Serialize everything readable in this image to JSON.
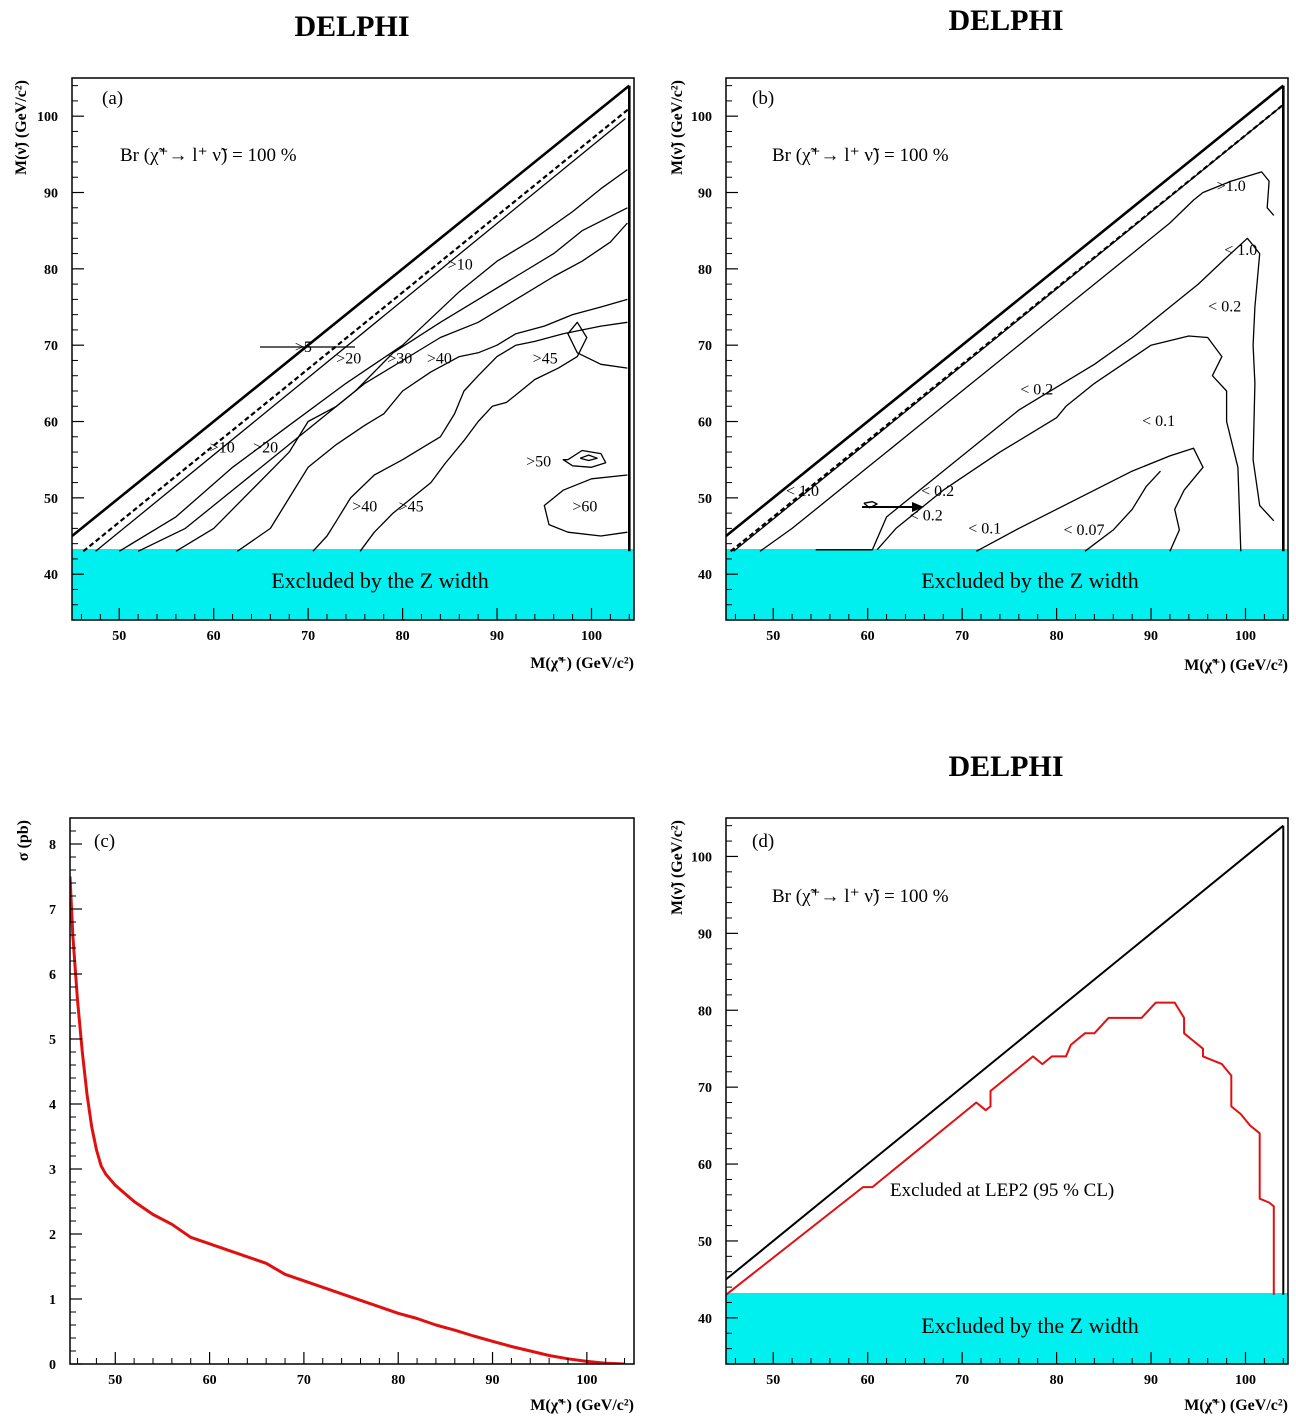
{
  "chart_data": [
    {
      "panel": "(a)",
      "type": "contour",
      "title": "DELPHI",
      "annotation": "Br (χ̃⁺→ l⁺ ν̃) = 100 %",
      "xlabel": "M(χ̃⁺) (GeV/c²)",
      "ylabel": "M(ν̃) (GeV/c²)",
      "xlim": [
        45,
        105
      ],
      "ylim": [
        34,
        105
      ],
      "xticks": [
        50,
        60,
        70,
        80,
        90,
        100
      ],
      "yticks": [
        40,
        50,
        60,
        70,
        80,
        90,
        100
      ],
      "band": {
        "label": "Excluded by the Z width",
        "y_range": [
          34,
          43
        ],
        "color": "#00f0f0"
      },
      "contour_labels": [
        {
          "text": ">5",
          "x": 69.5,
          "y": 69.6
        },
        {
          "text": ">10",
          "x": 86.1,
          "y": 80.4
        },
        {
          "text": ">20",
          "x": 74.3,
          "y": 68.1
        },
        {
          "text": ">30",
          "x": 79.7,
          "y": 68.1
        },
        {
          "text": ">40",
          "x": 83.9,
          "y": 68.1
        },
        {
          "text": ">45",
          "x": 95.1,
          "y": 68.1
        },
        {
          "text": ">10",
          "x": 60.9,
          "y": 56.4
        },
        {
          "text": ">20",
          "x": 65.5,
          "y": 56.4
        },
        {
          "text": ">50",
          "x": 94.4,
          "y": 54.6
        },
        {
          "text": ">40",
          "x": 76.0,
          "y": 48.7
        },
        {
          "text": ">45",
          "x": 80.9,
          "y": 48.7
        },
        {
          "text": ">60",
          "x": 99.3,
          "y": 48.7
        }
      ],
      "curves": [
        {
          "name": "boundary",
          "style": "solid-thick",
          "x": [
            45,
            104
          ],
          "y": [
            45,
            104
          ]
        },
        {
          "name": "boundary-dashed",
          "style": "dashed",
          "x": [
            46.2,
            104
          ],
          "y": [
            43,
            101
          ]
        },
        {
          "name": "c5",
          "x": [
            47.5,
            103.6
          ],
          "y": [
            43,
            99.7
          ]
        },
        {
          "name": "c10",
          "x": [
            50,
            56,
            62,
            68,
            74,
            80,
            86,
            90,
            94,
            98,
            101,
            103.8
          ],
          "y": [
            43,
            47.5,
            54,
            59.5,
            65,
            70,
            77,
            81,
            84,
            87.5,
            90.5,
            93
          ]
        },
        {
          "name": "c20",
          "x": [
            52,
            57,
            61,
            66,
            71,
            75,
            79,
            84,
            88,
            92,
            96,
            99,
            103.8
          ],
          "y": [
            43,
            46,
            50,
            55,
            60,
            64,
            69,
            73,
            76,
            79,
            82,
            85,
            88
          ]
        },
        {
          "name": "c30",
          "x": [
            56,
            60,
            64,
            68,
            70,
            73,
            76,
            80,
            84,
            88,
            92,
            96,
            99,
            102,
            103.8
          ],
          "y": [
            43,
            46,
            51,
            56,
            60,
            62,
            65,
            68,
            71,
            73,
            76,
            79,
            81,
            83.5,
            86
          ]
        },
        {
          "name": "c40",
          "x": [
            62.5,
            66,
            68,
            70,
            73,
            76,
            78,
            80,
            83,
            86,
            88,
            90,
            92,
            95,
            98,
            101,
            103.8
          ],
          "y": [
            43,
            46,
            50,
            54,
            57,
            59.5,
            61,
            64,
            66.5,
            68.5,
            69,
            70,
            71.5,
            72.5,
            74,
            75,
            76
          ]
        },
        {
          "name": "c45",
          "x": [
            70.5,
            72,
            73,
            74.5,
            77,
            80,
            82,
            84,
            85.5,
            86.5,
            88,
            90,
            92,
            94,
            97,
            101,
            103.8
          ],
          "y": [
            43,
            45,
            47,
            50,
            53,
            55,
            56.5,
            58,
            61,
            64,
            66,
            68.5,
            70,
            70.5,
            71.5,
            72.5,
            73
          ]
        },
        {
          "name": "c50",
          "x": [
            75.5,
            77,
            79,
            81,
            83,
            84.5,
            86.5,
            88,
            89.5,
            91,
            92.5,
            94,
            96.5,
            98.5,
            99.5,
            98.5,
            97.5,
            98.5,
            101,
            103.8
          ],
          "y": [
            43,
            45.5,
            48,
            50,
            52,
            54.5,
            57.5,
            60,
            62,
            62.5,
            64,
            65.5,
            67,
            68.5,
            71,
            73,
            71.5,
            69,
            67.5,
            67
          ]
        },
        {
          "name": "c60a",
          "x": [
            97.5,
            99,
            101,
            101.5,
            100,
            98,
            97,
            97.5
          ],
          "y": [
            55,
            56.2,
            55.8,
            54.6,
            54,
            54.2,
            55,
            55
          ]
        },
        {
          "name": "c60b",
          "x": [
            98.8,
            99.7,
            100.6,
            99.7,
            98.8
          ],
          "y": [
            55.2,
            55.6,
            55.2,
            54.9,
            55.2
          ]
        },
        {
          "name": "c60c",
          "x": [
            103.8,
            100,
            97,
            95,
            95.5,
            97.5,
            101,
            103.8
          ],
          "y": [
            53,
            52.5,
            51,
            49,
            46.5,
            45.5,
            45,
            45.5
          ]
        },
        {
          "name": "vertical-edge",
          "style": "solid-thick",
          "x": [
            104,
            104
          ],
          "y": [
            43,
            104
          ]
        }
      ],
      "arrow": {
        "x": [
          64,
          74.8
        ],
        "y": [
          70,
          70
        ]
      }
    },
    {
      "panel": "(b)",
      "type": "contour",
      "title": "DELPHI",
      "annotation": "Br (χ̃⁺→ l⁺ ν̃) = 100 %",
      "xlabel": "M(χ̃⁺) (GeV/c²)",
      "ylabel": "M(ν̃) (GeV/c²)",
      "xlim": [
        45,
        105
      ],
      "ylim": [
        34,
        105
      ],
      "xticks": [
        50,
        60,
        70,
        80,
        90,
        100
      ],
      "yticks": [
        40,
        50,
        60,
        70,
        80,
        90,
        100
      ],
      "band": {
        "label": "Excluded by the Z width",
        "y_range": [
          34,
          43
        ],
        "color": "#00f0f0"
      },
      "contour_labels": [
        {
          "text": ">1.0",
          "x": 98.5,
          "y": 90.7
        },
        {
          "text": "< 1.0",
          "x": 99.5,
          "y": 82.3
        },
        {
          "text": "< 0.2",
          "x": 97.8,
          "y": 74.9
        },
        {
          "text": "< 0.2",
          "x": 77.9,
          "y": 64.0
        },
        {
          "text": "< 0.1",
          "x": 90.8,
          "y": 59.9
        },
        {
          "text": "< 0.2",
          "x": 67.4,
          "y": 50.7
        },
        {
          "text": "< 1.0",
          "x": 53.1,
          "y": 50.7
        },
        {
          "text": "< 0.2",
          "x": 66.2,
          "y": 47.5
        },
        {
          "text": "< 0.1",
          "x": 72.4,
          "y": 45.8
        },
        {
          "text": "< 0.07",
          "x": 82.9,
          "y": 45.6
        }
      ],
      "curves": [
        {
          "name": "boundary",
          "style": "solid-thick",
          "x": [
            45,
            104
          ],
          "y": [
            45,
            104
          ]
        },
        {
          "name": "boundary-dashed",
          "style": "dashed",
          "x": [
            45.5,
            104
          ],
          "y": [
            43,
            101.5
          ]
        },
        {
          "name": "c1a",
          "x": [
            45.8,
            104
          ],
          "y": [
            43,
            101.5
          ]
        },
        {
          "name": "c1b",
          "x": [
            48.6,
            52,
            56,
            60,
            64,
            68,
            72,
            76,
            80,
            84,
            88,
            92,
            94.5,
            95.5,
            98.5,
            101.7,
            102.5,
            102.3,
            103
          ],
          "y": [
            43,
            46,
            50,
            54,
            58,
            62,
            66,
            70,
            74,
            78,
            82,
            86,
            89,
            90,
            91.5,
            92.7,
            91.5,
            88,
            87
          ]
        },
        {
          "name": "c02",
          "x": [
            54.5,
            60.5,
            62,
            68,
            72,
            76,
            80,
            84,
            88,
            92,
            95,
            98,
            100.2,
            101.5,
            101,
            100.8,
            101,
            100.8,
            101.5,
            103
          ],
          "y": [
            43.2,
            43.2,
            47.5,
            53.5,
            57.5,
            61.5,
            64.5,
            67.5,
            71,
            75,
            78,
            81.5,
            84,
            82,
            75,
            70,
            65,
            55,
            49,
            47
          ]
        },
        {
          "name": "c02b",
          "x": [
            61,
            63,
            68,
            74,
            80,
            81,
            84,
            87,
            90,
            94,
            96,
            97.5,
            96.5,
            98,
            98,
            99.2,
            99.5
          ],
          "y": [
            43.2,
            46,
            51,
            56,
            60.5,
            62,
            65,
            67.5,
            70,
            71.2,
            71,
            68.5,
            66,
            64,
            60,
            54,
            43
          ]
        },
        {
          "name": "c01",
          "x": [
            71.5,
            76,
            80,
            84,
            88,
            92,
            94.5,
            95.5,
            94.5,
            93.5,
            92.5,
            93,
            92
          ],
          "y": [
            43,
            46,
            48.5,
            51,
            53.5,
            55.5,
            56.5,
            54,
            52.5,
            51,
            48.5,
            45.8,
            43
          ]
        },
        {
          "name": "c007",
          "x": [
            83,
            86,
            88,
            89.5,
            91
          ],
          "y": [
            43,
            45.8,
            48.5,
            51.5,
            53.5
          ]
        },
        {
          "name": "blob",
          "x": [
            59.6,
            60.5,
            61,
            60.2,
            59.6
          ],
          "y": [
            49.3,
            49.5,
            49.2,
            48.7,
            49.3
          ]
        },
        {
          "name": "vertical-edge",
          "style": "solid-thick",
          "x": [
            104,
            104
          ],
          "y": [
            43,
            104
          ]
        }
      ],
      "arrow": {
        "x": [
          59.5,
          66.3
        ],
        "y": [
          48.8,
          48.8
        ]
      }
    },
    {
      "panel": "(c)",
      "type": "line",
      "title": "",
      "xlabel": "M(χ̃⁺) (GeV/c²)",
      "ylabel": "σ (pb)",
      "xlim": [
        45,
        105
      ],
      "ylim": [
        0,
        8.5
      ],
      "xticks": [
        50,
        60,
        70,
        80,
        90,
        100
      ],
      "yticks": [
        0,
        1,
        2,
        3,
        4,
        5,
        6,
        7,
        8
      ],
      "series": [
        {
          "color": "#e01010",
          "x": [
            45.2,
            45.5,
            46,
            46.5,
            47,
            47.5,
            48,
            48.5,
            49,
            50,
            52,
            54,
            56,
            58,
            60,
            62,
            64,
            66,
            68,
            70,
            72,
            74,
            76,
            78,
            80,
            82,
            84,
            86,
            88,
            90,
            92,
            94,
            96,
            98,
            100,
            102,
            104
          ],
          "y": [
            7.5,
            6.6,
            5.6,
            4.8,
            4.15,
            3.65,
            3.3,
            3.05,
            2.92,
            2.75,
            2.5,
            2.3,
            2.15,
            1.95,
            1.85,
            1.75,
            1.65,
            1.55,
            1.38,
            1.28,
            1.18,
            1.08,
            0.98,
            0.88,
            0.78,
            0.7,
            0.6,
            0.52,
            0.43,
            0.35,
            0.27,
            0.2,
            0.13,
            0.08,
            0.04,
            0.01,
            0.0
          ]
        }
      ]
    },
    {
      "panel": "(d)",
      "type": "line",
      "title": "DELPHI",
      "annotation": "Br (χ̃⁺→ l⁺ ν̃) = 100 %",
      "xlabel": "M(χ̃⁺) (GeV/c²)",
      "ylabel": "M(ν̃) (GeV/c²)",
      "xlim": [
        45,
        105
      ],
      "ylim": [
        34,
        105
      ],
      "xticks": [
        50,
        60,
        70,
        80,
        90,
        100
      ],
      "yticks": [
        40,
        50,
        60,
        70,
        80,
        90,
        100
      ],
      "band": {
        "label": "Excluded by the Z width",
        "y_range": [
          34,
          43
        ],
        "color": "#00f0f0"
      },
      "region_label": "Excluded at LEP2 (95 % CL)",
      "curves": [
        {
          "name": "boundary",
          "style": "solid",
          "x": [
            45,
            104
          ],
          "y": [
            45,
            104
          ]
        },
        {
          "name": "vertical-edge",
          "style": "solid",
          "x": [
            104,
            104
          ],
          "y": [
            43,
            104
          ]
        },
        {
          "name": "exclusion",
          "style": "red",
          "x": [
            45,
            59.5,
            60.5,
            71.5,
            72.5,
            73,
            73,
            77.5,
            78.5,
            79.5,
            81,
            81.5,
            82,
            83,
            84,
            85.5,
            89,
            90.5,
            92.5,
            93.5,
            93.5,
            94.5,
            95.5,
            95.5,
            97.5,
            98.5,
            98.5,
            99.5,
            100.5,
            101.5,
            101.5,
            102.5,
            103,
            103,
            103
          ],
          "y": [
            43,
            57,
            57,
            68,
            67,
            67.5,
            69.5,
            74,
            73,
            74,
            74,
            75.5,
            76,
            77,
            77,
            79,
            79,
            81,
            81,
            79,
            77,
            76,
            75,
            74,
            73,
            71.5,
            67.5,
            66.5,
            65,
            64,
            55.5,
            55,
            54.5,
            50,
            43
          ]
        }
      ]
    }
  ]
}
